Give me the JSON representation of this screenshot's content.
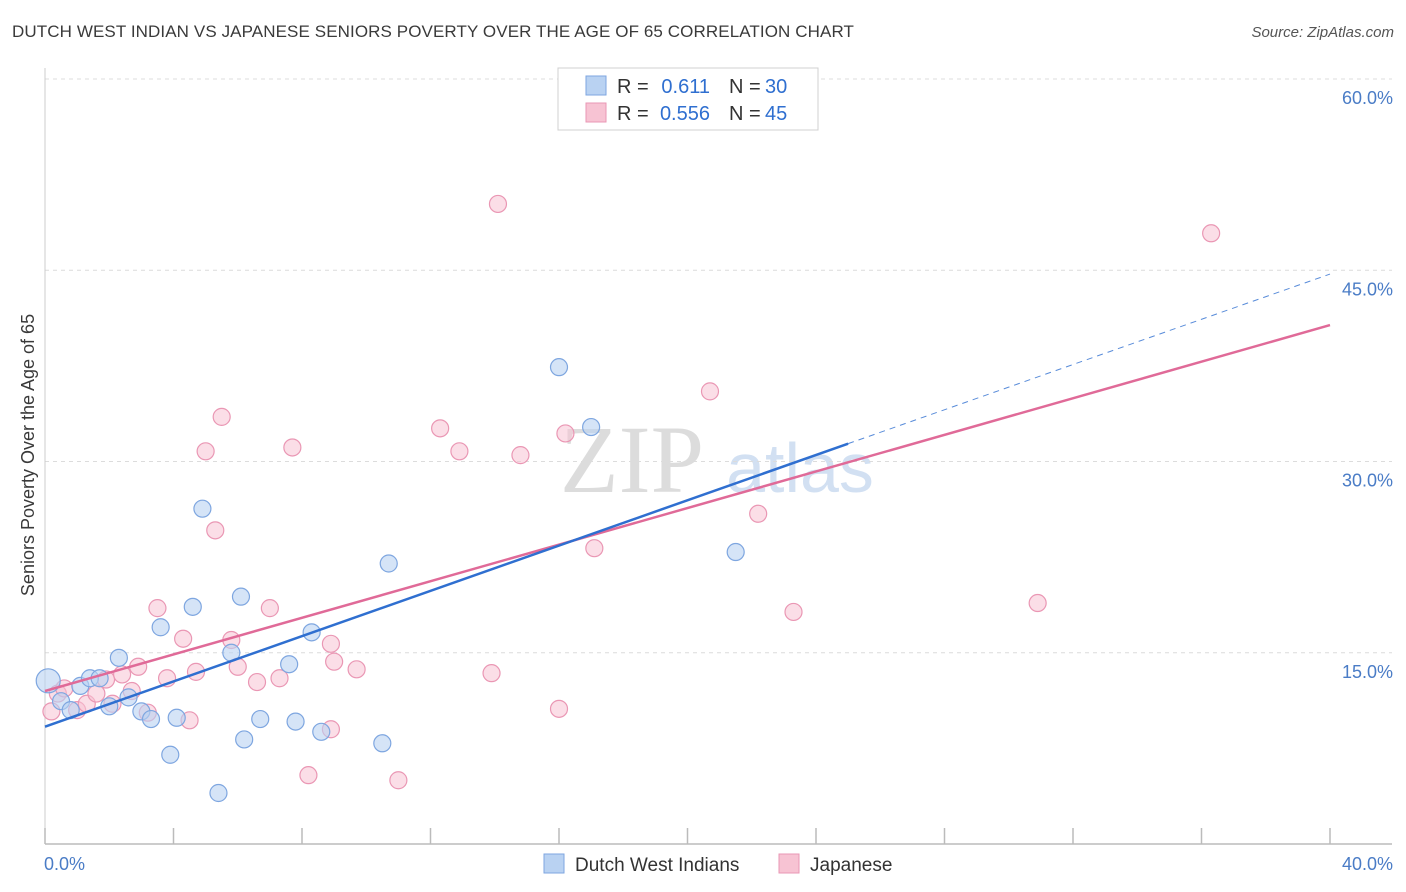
{
  "header": {
    "title": "DUTCH WEST INDIAN VS JAPANESE SENIORS POVERTY OVER THE AGE OF 65 CORRELATION CHART",
    "source": "Source: ZipAtlas.com"
  },
  "watermark": {
    "zip": "ZIP",
    "atlas": "atlas"
  },
  "legend_top": [
    {
      "r_label": "R =",
      "r_value": "0.611",
      "n_label": "N =",
      "n_value": "30"
    },
    {
      "r_label": "R =",
      "r_value": "0.556",
      "n_label": "N =",
      "n_value": "45"
    }
  ],
  "colors": {
    "blue_fill": "#b9d2f2",
    "blue_stroke": "#7ea6e0",
    "blue_line": "#2f6fd0",
    "pink_fill": "#f7c3d3",
    "pink_stroke": "#ea97b4",
    "pink_line": "#e06a98",
    "tick_text": "#4a7cc6",
    "grid": "#dcdcdc"
  },
  "chart_data": {
    "type": "scatter",
    "title": "DUTCH WEST INDIAN VS JAPANESE SENIORS POVERTY OVER THE AGE OF 65 CORRELATION CHART",
    "xlabel": "",
    "ylabel": "Seniors Poverty Over the Age of 65",
    "xlim": [
      0,
      40
    ],
    "ylim": [
      0,
      60
    ],
    "x_tick_labels": [
      "0.0%",
      "40.0%"
    ],
    "y_ticks": [
      15,
      30,
      45,
      60
    ],
    "y_tick_labels": [
      "15.0%",
      "30.0%",
      "45.0%",
      "60.0%"
    ],
    "grid": true,
    "legend_position": "bottom-center",
    "series": [
      {
        "name": "Dutch West Indians",
        "r": 0.611,
        "n": 30,
        "trend": {
          "x": [
            0,
            25
          ],
          "y": [
            9.2,
            31.4
          ],
          "extended_to_x": 40,
          "extended_y": 44.7
        },
        "points": [
          [
            0.1,
            12.8
          ],
          [
            0.5,
            11.2
          ],
          [
            0.8,
            10.5
          ],
          [
            1.1,
            12.4
          ],
          [
            1.4,
            13.0
          ],
          [
            1.7,
            13.0
          ],
          [
            2.0,
            10.8
          ],
          [
            2.3,
            14.6
          ],
          [
            2.6,
            11.5
          ],
          [
            3.0,
            10.4
          ],
          [
            3.3,
            9.8
          ],
          [
            3.6,
            17.0
          ],
          [
            3.9,
            7.0
          ],
          [
            4.1,
            9.9
          ],
          [
            4.6,
            18.6
          ],
          [
            4.9,
            26.3
          ],
          [
            5.4,
            4.0
          ],
          [
            5.8,
            15.0
          ],
          [
            6.1,
            19.4
          ],
          [
            6.2,
            8.2
          ],
          [
            6.7,
            9.8
          ],
          [
            7.6,
            14.1
          ],
          [
            7.8,
            9.6
          ],
          [
            8.3,
            16.6
          ],
          [
            8.6,
            8.8
          ],
          [
            10.5,
            7.9
          ],
          [
            10.7,
            22.0
          ],
          [
            16.0,
            37.4
          ],
          [
            17.0,
            32.7
          ],
          [
            21.5,
            22.9
          ]
        ]
      },
      {
        "name": "Japanese",
        "r": 0.556,
        "n": 45,
        "trend": {
          "x": [
            0,
            40
          ],
          "y": [
            12.0,
            40.7
          ]
        },
        "points": [
          [
            0.2,
            10.4
          ],
          [
            0.4,
            11.8
          ],
          [
            0.6,
            12.2
          ],
          [
            1.0,
            10.5
          ],
          [
            1.3,
            11.0
          ],
          [
            1.6,
            11.8
          ],
          [
            1.9,
            12.9
          ],
          [
            2.1,
            11.0
          ],
          [
            2.4,
            13.3
          ],
          [
            2.7,
            12.0
          ],
          [
            2.9,
            13.9
          ],
          [
            3.2,
            10.3
          ],
          [
            3.5,
            18.5
          ],
          [
            3.8,
            13.0
          ],
          [
            4.3,
            16.1
          ],
          [
            4.5,
            9.7
          ],
          [
            4.7,
            13.5
          ],
          [
            5.0,
            30.8
          ],
          [
            5.3,
            24.6
          ],
          [
            5.5,
            33.5
          ],
          [
            5.8,
            16.0
          ],
          [
            6.0,
            13.9
          ],
          [
            6.6,
            12.7
          ],
          [
            7.0,
            18.5
          ],
          [
            7.3,
            13.0
          ],
          [
            7.7,
            31.1
          ],
          [
            8.2,
            5.4
          ],
          [
            8.9,
            9.0
          ],
          [
            8.9,
            15.7
          ],
          [
            9.0,
            14.3
          ],
          [
            9.7,
            13.7
          ],
          [
            11.0,
            5.0
          ],
          [
            12.3,
            32.6
          ],
          [
            12.9,
            30.8
          ],
          [
            14.1,
            50.2
          ],
          [
            13.9,
            13.4
          ],
          [
            14.8,
            30.5
          ],
          [
            16.0,
            10.6
          ],
          [
            16.2,
            32.2
          ],
          [
            17.1,
            23.2
          ],
          [
            20.7,
            35.5
          ],
          [
            22.2,
            25.9
          ],
          [
            23.3,
            18.2
          ],
          [
            30.9,
            18.9
          ],
          [
            36.3,
            47.9
          ]
        ]
      }
    ]
  }
}
